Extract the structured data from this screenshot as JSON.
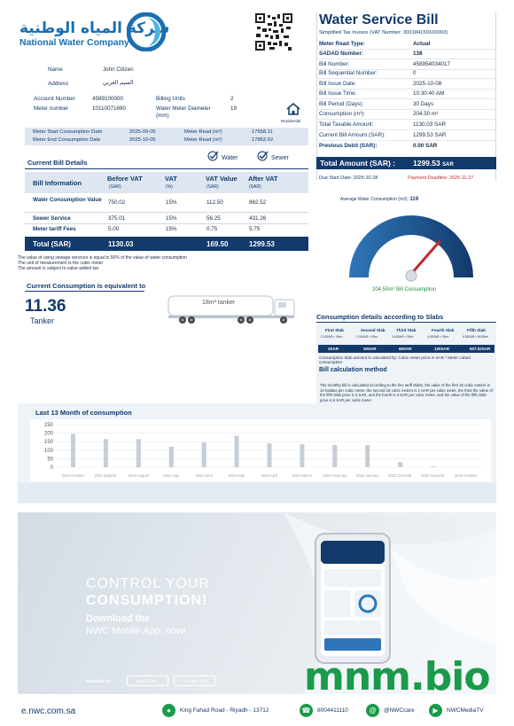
{
  "header": {
    "logo_ar": "شركة المياه الوطنية",
    "logo_en": "National Water Company",
    "qr_icon": "qr-code-icon"
  },
  "customer": {
    "name_label": "Name",
    "name_value": "John Citizen",
    "address_label": "Address",
    "address_value": "السيم الغربي",
    "account_label": "Account Number",
    "account_value": "4589100000",
    "meter_label": "Meter number",
    "meter_value": "10110071690",
    "billing_units_label": "Billing Units",
    "billing_units_value": "2",
    "diameter_label": "Water Meter Diameter (mm)",
    "diameter_value": "19",
    "residential_label": "Residential"
  },
  "bill": {
    "title": "Water Service Bill",
    "subtitle": "Simplified Tax Invoice (VAT Number: 300184159100003)",
    "rows": [
      {
        "label": "Meter Read Type:",
        "value": "Actual"
      },
      {
        "label": "SADAD Number:",
        "value": "138"
      },
      {
        "label": "Bill Number:",
        "value": "458954034017"
      },
      {
        "label": "Bill Sequential Number:",
        "value": "0"
      },
      {
        "label": "Bill Issue Date:",
        "value": "2025-10-08"
      },
      {
        "label": "Bill Issue Time:",
        "value": "10:30:40 AM"
      },
      {
        "label": "Bill Period (Days):",
        "value": "30 Days"
      },
      {
        "label": "Consumption (m³):",
        "value": "204.50 m³"
      },
      {
        "label": "Total Taxable Amount:",
        "value": "1130.03 SAR"
      },
      {
        "label": "Current Bill Amount (SAR):",
        "value": "1299.53 SAR"
      },
      {
        "label": "Previous Debit (SAR):",
        "value": "0.00 SAR"
      }
    ],
    "total_label": "Total Amount (SAR) :",
    "total_value": "1299.53",
    "total_unit": "SAR",
    "due_label": "Due Start Date:  2025-10-28",
    "payment_deadline": "Payment Deadline: 2025-11-27"
  },
  "meter": {
    "start_label": "Meter Start Consumption Date",
    "start_date": "2025-09-05",
    "end_label": "Meter End Consumption Date",
    "end_date": "2025-10-05",
    "read_label": "Meter Read (m³)",
    "start_read": "17658.11",
    "end_read": "17862.62"
  },
  "details": {
    "title": "Current Bill Details",
    "water_label": "Water",
    "sewer_label": "Sewer",
    "columns": [
      {
        "main": "Bill Information",
        "sub": ""
      },
      {
        "main": "Before VAT",
        "sub": "(SAR)"
      },
      {
        "main": "VAT",
        "sub": "(%)"
      },
      {
        "main": "VAT Value",
        "sub": "(SAR)"
      },
      {
        "main": "After VAT",
        "sub": "(SAR)"
      }
    ],
    "rows": [
      {
        "name": "Water Consumption Value",
        "before": "750.02",
        "vat": "15%",
        "vat_value": "112.50",
        "after": "862.52"
      },
      {
        "name": "Sewer Service",
        "before": "375.01",
        "vat": "15%",
        "vat_value": "56.25",
        "after": "431.26"
      },
      {
        "name": "Meter tariff Fees",
        "before": "5.00",
        "vat": "15%",
        "vat_value": "0.75",
        "after": "5.75"
      }
    ],
    "total": {
      "name": "Total (SAR)",
      "before": "1130.03",
      "vat_value": "169.50",
      "after": "1299.53"
    },
    "notes": [
      "The value of using sewage services is equal to 50% of the value of water consumption",
      "The unit of measurement is the cubic meter",
      "The amount is subject to value added tax"
    ]
  },
  "equivalent": {
    "title": "Current Consumption is equivalent to",
    "value": "11.36",
    "unit": "Tanker",
    "tanker_label": "18m³ tanker"
  },
  "gauge": {
    "title": "Average Water Consumption (m3):",
    "average": "119",
    "consumption_label": "204.50m³ Bill Consumption",
    "level": 0.72
  },
  "slabs": {
    "title": "Consumption details according to Slabs",
    "items": [
      {
        "name": "First Slab",
        "price": "0.10SAR × 30m³",
        "value": "3SAR"
      },
      {
        "name": "Second Slab",
        "price": "1.00SAR × 30m³",
        "value": "30SAR"
      },
      {
        "name": "Third Slab",
        "price": "3.00SAR × 30m³",
        "value": "90SAR"
      },
      {
        "name": "Fourth Slab",
        "price": "4.00SAR × 30m³",
        "value": "120SAR"
      },
      {
        "name": "Fifth Slab",
        "price": "6.00SAR × 84.50m³",
        "value": "507.02SAR"
      }
    ],
    "note": "Consumption Slab amount is calculated by: Cubic meter price in SAR * Meter cubed consumption",
    "calc_title": "Bill calculation method",
    "calc_text": "The monthly bill is calculated according to the five tariff Slabs, the value of the first 15 cubic meters is 10 halalas per cubic meter, the second 15 cubic meters is 1 SAR per cubic meter, the third the value of the fifth Slab price is 3 SAR, and the fourth is 4 SAR per cubic meter, and the value of the fifth Slab price is 6 SAR per cubic meter"
  },
  "history": {
    "title": "Last 13 Month of consumption"
  },
  "chart_data": {
    "type": "bar",
    "categories": [
      "2024 October",
      "2024 Septem.",
      "2024 August",
      "2024 July",
      "2024 June",
      "2024 May",
      "2024 April",
      "2024 March",
      "2024 February",
      "2024 January",
      "2023 Decemb.",
      "2023 Novemb.",
      "2023 October"
    ],
    "values": [
      195,
      165,
      165,
      120,
      145,
      185,
      140,
      135,
      130,
      130,
      30,
      5,
      0
    ],
    "ylim": [
      0,
      250
    ],
    "yticks": [
      "250",
      "200",
      "150",
      "100",
      "50",
      "0"
    ],
    "bar_color": "#c5cdd6",
    "grid": true
  },
  "promo": {
    "line1": "CONTROL YOUR",
    "line2": "CONSUMPTION!",
    "line3": "Download the",
    "line4": "NWC Mobile App. now!",
    "available": "Available at:",
    "app_store": "App Store",
    "google_play": "Google Play"
  },
  "watermark": "mnm.bio",
  "footer": {
    "web": "e.nwc.com.sa",
    "address": "King Fahad Road - Riyadh - 13712",
    "phone": "8004411110",
    "twitter": "@NWCcare",
    "media": "NWCMediaTV"
  }
}
